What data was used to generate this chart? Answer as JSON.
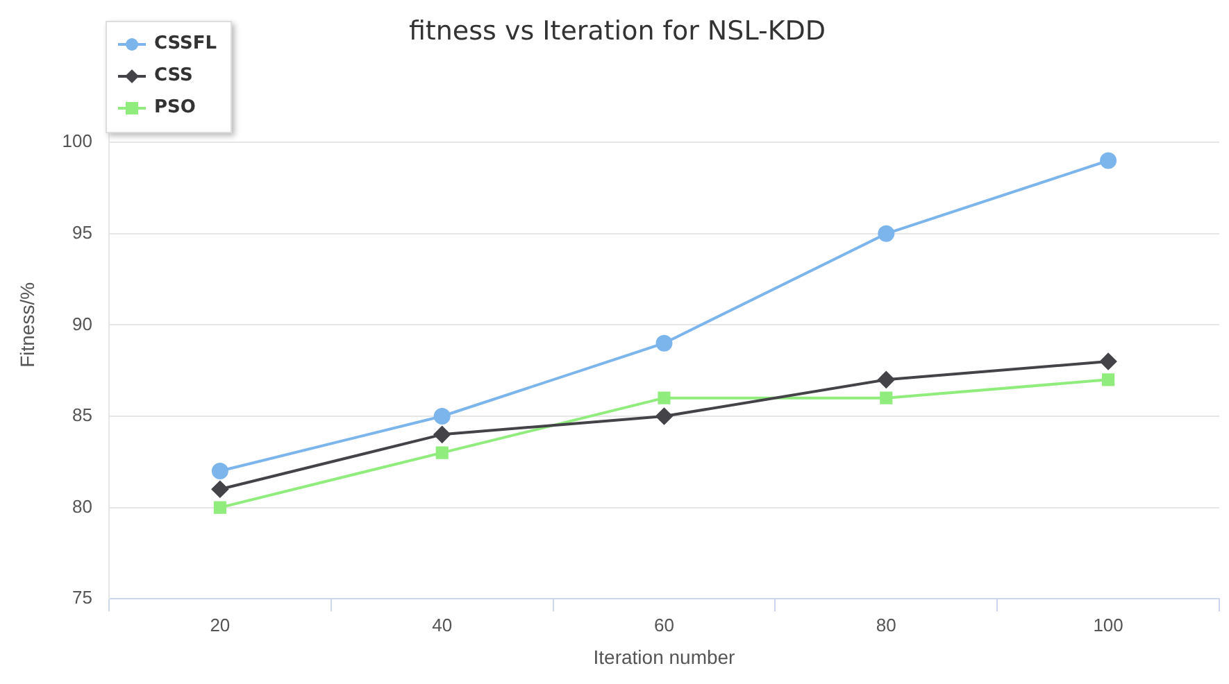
{
  "chart_data": {
    "type": "line",
    "title": "fitness vs Iteration for NSL-KDD",
    "xlabel": "Iteration number",
    "ylabel": "Fitness/%",
    "categories": [
      "20",
      "40",
      "60",
      "80",
      "100"
    ],
    "series": [
      {
        "name": "CSSFL",
        "color": "#7cb5ec",
        "marker": "circle",
        "values": [
          82,
          85,
          89,
          95,
          99
        ]
      },
      {
        "name": "CSS",
        "color": "#434348",
        "marker": "diamond",
        "values": [
          81,
          84,
          85,
          87,
          88
        ]
      },
      {
        "name": "PSO",
        "color": "#90ed7d",
        "marker": "square",
        "values": [
          80,
          83,
          86,
          86,
          87
        ]
      }
    ],
    "ylim": [
      75,
      105
    ],
    "yticks": [
      75,
      80,
      85,
      90,
      95,
      100
    ],
    "grid": "y",
    "legend": "top left"
  }
}
